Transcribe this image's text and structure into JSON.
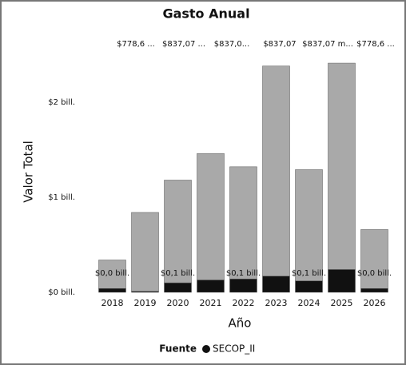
{
  "chart_data": {
    "type": "bar",
    "stacked": true,
    "title": "Gasto Anual",
    "x_label": "Año",
    "y_label": "Valor Total",
    "legend_title": "Fuente",
    "categories": [
      "2018",
      "2019",
      "2020",
      "2021",
      "2022",
      "2023",
      "2024",
      "2025",
      "2026"
    ],
    "series": [
      {
        "name": "SECOP_II",
        "color": "#111111",
        "values": [
          0.04,
          0.01,
          0.1,
          0.13,
          0.14,
          0.17,
          0.12,
          0.24,
          0.04
        ],
        "value_labels": [
          "$0,0 bill.",
          null,
          "$0,1 bill.",
          null,
          "$0,1 bill.",
          null,
          "$0,1 bill.",
          null,
          "$0,0 bill."
        ]
      },
      {
        "color": "#a9a9a9",
        "values": [
          0.3,
          0.83,
          1.08,
          1.33,
          1.18,
          2.21,
          1.17,
          2.17,
          0.62
        ]
      }
    ],
    "annotations": [
      "$778,6 ...",
      "$837,07 ...",
      "$837,0...",
      "$837,07",
      "$837,07 m...",
      "$778,6 ..."
    ],
    "ylim": [
      0,
      2.57
    ],
    "yticks": [
      {
        "value": 0,
        "label": "$0 bill."
      },
      {
        "value": 1,
        "label": "$1 bill."
      },
      {
        "value": 2,
        "label": "$2 bill."
      }
    ]
  }
}
